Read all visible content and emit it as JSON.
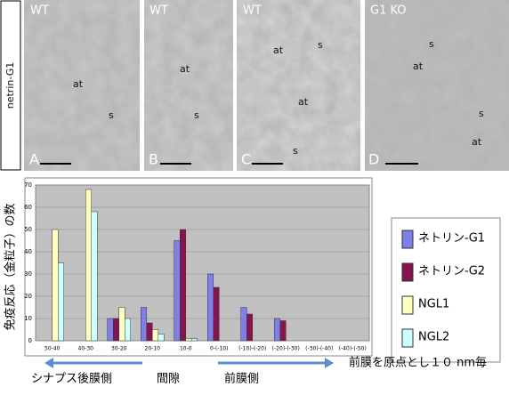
{
  "panel_row_label": "netrin-G1",
  "panels": [
    {
      "genotype": "WT",
      "letter": "A",
      "labels": [
        "at",
        "s"
      ]
    },
    {
      "genotype": "WT",
      "letter": "B",
      "labels": [
        "at",
        "s"
      ]
    },
    {
      "genotype": "WT",
      "letter": "C",
      "labels": [
        "at",
        "s",
        "at",
        "s"
      ]
    },
    {
      "genotype": "G1 KO",
      "letter": "D",
      "labels": [
        "s",
        "at",
        "s",
        "at"
      ]
    }
  ],
  "chart_data": {
    "type": "bar",
    "y_label": "免疫反応（金粒子）の数",
    "categories": [
      "50-40",
      "40-30",
      "30-20",
      "20-10",
      "10-0",
      "0-(-10)",
      "(-10)-(-20)",
      "(-20)-(-30)",
      "(-30)-(-40)",
      "(-40)-(-50)"
    ],
    "series": [
      {
        "name": "ネトリン-G1",
        "color": "#7f7fe8",
        "values": [
          0,
          0,
          10,
          15,
          45,
          30,
          15,
          10,
          0,
          0
        ]
      },
      {
        "name": "ネトリン-G2",
        "color": "#84154f",
        "values": [
          0,
          0,
          10,
          8,
          50,
          24,
          12,
          9,
          0,
          0
        ]
      },
      {
        "name": "NGL1",
        "color": "#ffffbf",
        "values": [
          50,
          68,
          15,
          5,
          1,
          0,
          0,
          0,
          0,
          0
        ]
      },
      {
        "name": "NGL2",
        "color": "#ccffff",
        "values": [
          35,
          58,
          10,
          3,
          1,
          0,
          0,
          0,
          0,
          0
        ]
      }
    ],
    "ylim": [
      0,
      70
    ],
    "yticks": [
      0,
      10,
      20,
      30,
      40,
      50,
      60,
      70
    ],
    "grid": true,
    "annotations": [
      "シナプス後膜側",
      "間隙",
      "前膜側",
      "前膜を原点とし１０ nm毎"
    ]
  }
}
